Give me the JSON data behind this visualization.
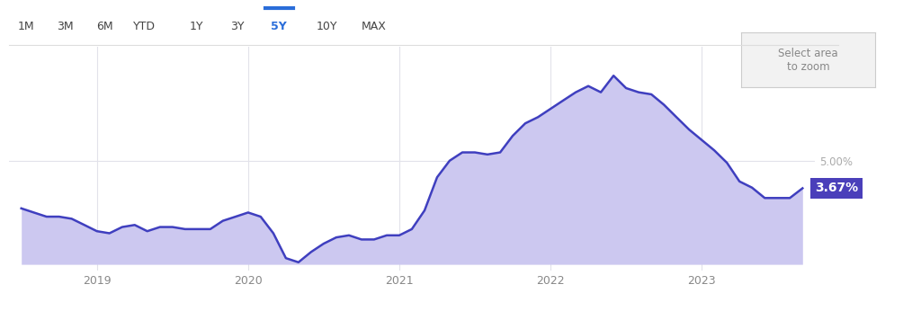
{
  "x_values": [
    2018.5,
    2018.583,
    2018.667,
    2018.75,
    2018.833,
    2018.917,
    2019.0,
    2019.083,
    2019.167,
    2019.25,
    2019.333,
    2019.417,
    2019.5,
    2019.583,
    2019.667,
    2019.75,
    2019.833,
    2019.917,
    2020.0,
    2020.083,
    2020.167,
    2020.25,
    2020.333,
    2020.417,
    2020.5,
    2020.583,
    2020.667,
    2020.75,
    2020.833,
    2020.917,
    2021.0,
    2021.083,
    2021.167,
    2021.25,
    2021.333,
    2021.417,
    2021.5,
    2021.583,
    2021.667,
    2021.75,
    2021.833,
    2021.917,
    2022.0,
    2022.083,
    2022.167,
    2022.25,
    2022.333,
    2022.417,
    2022.5,
    2022.583,
    2022.667,
    2022.75,
    2022.833,
    2022.917,
    2023.0,
    2023.083,
    2023.167,
    2023.25,
    2023.333,
    2023.417,
    2023.5,
    2023.583,
    2023.667
  ],
  "y_values": [
    2.7,
    2.5,
    2.3,
    2.3,
    2.2,
    1.9,
    1.6,
    1.5,
    1.8,
    1.9,
    1.6,
    1.8,
    1.8,
    1.7,
    1.7,
    1.7,
    2.1,
    2.3,
    2.5,
    2.3,
    1.5,
    0.3,
    0.1,
    0.6,
    1.0,
    1.3,
    1.4,
    1.2,
    1.2,
    1.4,
    1.4,
    1.7,
    2.6,
    4.2,
    5.0,
    5.4,
    5.4,
    5.3,
    5.4,
    6.2,
    6.8,
    7.1,
    7.5,
    7.9,
    8.3,
    8.6,
    8.3,
    9.1,
    8.5,
    8.3,
    8.2,
    7.7,
    7.1,
    6.5,
    6.0,
    5.5,
    4.9,
    4.0,
    3.7,
    3.2,
    3.2,
    3.2,
    3.67
  ],
  "fill_color": "#ccc8f0",
  "line_color": "#3f3fbf",
  "line_width": 1.8,
  "label_bg_color": "#4a3fba",
  "label_text": "3.67%",
  "label_text_color": "#ffffff",
  "ylim_min": -0.3,
  "ylim_max": 10.5,
  "ytick_value": 5.0,
  "ytick_label": "5.00%",
  "xtick_labels": [
    "2019",
    "2020",
    "2021",
    "2022",
    "2023"
  ],
  "xtick_positions": [
    2019.0,
    2020.0,
    2021.0,
    2022.0,
    2023.0
  ],
  "xlim_min": 2018.42,
  "xlim_max": 2023.75,
  "bg_color": "#ffffff",
  "grid_color": "#e2e2ea",
  "time_buttons": [
    "1M",
    "3M",
    "6M",
    "YTD",
    "1Y",
    "3Y",
    "5Y",
    "10Y",
    "MAX"
  ],
  "active_button": "5Y",
  "active_button_color": "#2a6dd9",
  "button_text_color": "#444444",
  "select_area_text": "Select area\nto zoom",
  "select_area_bg": "#f2f2f2",
  "select_area_border": "#cccccc",
  "ytick_color": "#aaaaaa",
  "xtick_color": "#888888",
  "top_border_color": "#dddddd"
}
